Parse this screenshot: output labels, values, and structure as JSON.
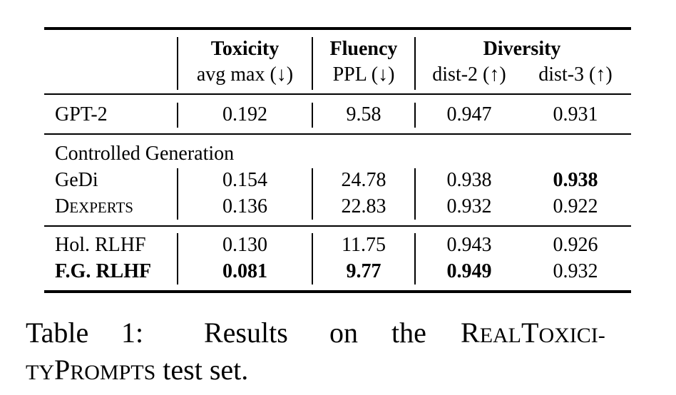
{
  "table": {
    "headers": {
      "toxicity": "Toxicity",
      "toxicity_sub": "avg max (↓)",
      "fluency": "Fluency",
      "fluency_sub": "PPL (↓)",
      "diversity": "Diversity",
      "dist2": "dist-2 (↑)",
      "dist3": "dist-3 (↑)"
    },
    "rows": [
      {
        "name": "GPT-2",
        "tox": "0.192",
        "ppl": "9.58",
        "d2": "0.947",
        "d3": "0.931"
      },
      {
        "section": "Controlled Generation"
      },
      {
        "name": "GeDi",
        "tox": "0.154",
        "ppl": "24.78",
        "d2": "0.938",
        "d3": "0.938"
      },
      {
        "name_big1": "D",
        "name_small1": "EXPERTS",
        "tox": "0.136",
        "ppl": "22.83",
        "d2": "0.932",
        "d3": "0.922"
      },
      {
        "name": "Hol. RLHF",
        "tox": "0.130",
        "ppl": "11.75",
        "d2": "0.943",
        "d3": "0.926"
      },
      {
        "name": "F.G. RLHF",
        "tox": "0.081",
        "ppl": "9.77",
        "d2": "0.949",
        "d3": "0.932"
      }
    ]
  },
  "caption": {
    "label": "Table",
    "number": "1:",
    "w1": "Results",
    "w2": "on",
    "w3": "the",
    "rt_R": "R",
    "rt_eal": "EAL",
    "rt_T": "T",
    "rt_oxici": "OXICI-",
    "rt_ty": "TY",
    "rt_P": "P",
    "rt_rompts": "ROMPTS",
    "tail": " test set."
  }
}
